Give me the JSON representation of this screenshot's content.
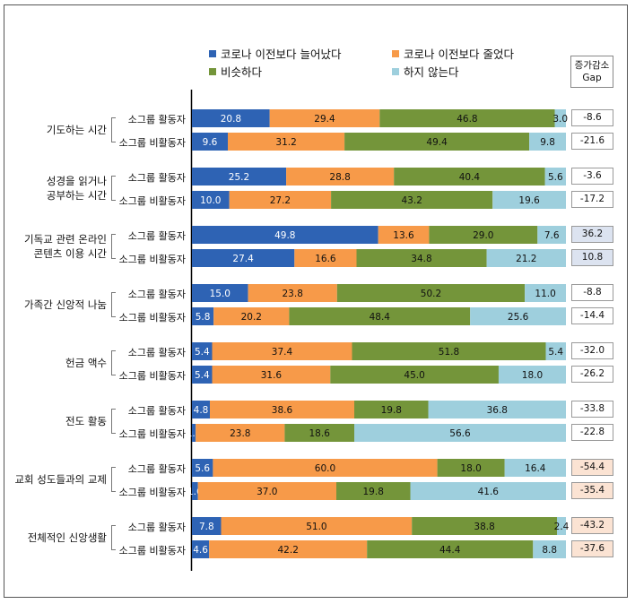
{
  "chart_data": {
    "type": "bar",
    "orientation": "horizontal",
    "stacked": true,
    "xlim": [
      0,
      100
    ],
    "series_names": [
      "코로나 이전보다 늘어났다",
      "코로나 이전보다 줄었다",
      "비슷하다",
      "하지 않는다"
    ],
    "colors": [
      "#2E63B4",
      "#F79A49",
      "#74953A",
      "#9ECFDD"
    ],
    "gap_header": [
      "증가감소",
      "Gap"
    ],
    "groups": [
      {
        "label": [
          "기도하는 시간"
        ],
        "rows": [
          {
            "label": "소그룹 활동자",
            "values": [
              20.8,
              29.4,
              46.8,
              3.0
            ],
            "gap": "-8.6"
          },
          {
            "label": "소그룹 비활동자",
            "values": [
              9.6,
              31.2,
              49.4,
              9.8
            ],
            "gap": "-21.6"
          }
        ]
      },
      {
        "label": [
          "성경을 읽거나",
          "공부하는 시간"
        ],
        "rows": [
          {
            "label": "소그룹 활동자",
            "values": [
              25.2,
              28.8,
              40.4,
              5.6
            ],
            "gap": "-3.6"
          },
          {
            "label": "소그룹 비활동자",
            "values": [
              10.0,
              27.2,
              43.2,
              19.6
            ],
            "gap": "-17.2"
          }
        ]
      },
      {
        "label": [
          "기독교 관련 온라인",
          "콘텐츠 이용 시간"
        ],
        "rows": [
          {
            "label": "소그룹 활동자",
            "values": [
              49.8,
              13.6,
              29.0,
              7.6
            ],
            "gap": "36.2"
          },
          {
            "label": "소그룹 비활동자",
            "values": [
              27.4,
              16.6,
              34.8,
              21.2
            ],
            "gap": "10.8"
          }
        ]
      },
      {
        "label": [
          "가족간 신앙적 나눔"
        ],
        "rows": [
          {
            "label": "소그룹 활동자",
            "values": [
              15.0,
              23.8,
              50.2,
              11.0
            ],
            "gap": "-8.8"
          },
          {
            "label": "소그룹 비활동자",
            "values": [
              5.8,
              20.2,
              48.4,
              25.6
            ],
            "gap": "-14.4"
          }
        ]
      },
      {
        "label": [
          "헌금 액수"
        ],
        "rows": [
          {
            "label": "소그룹 활동자",
            "values": [
              5.4,
              37.4,
              51.8,
              5.4
            ],
            "gap": "-32.0"
          },
          {
            "label": "소그룹 비활동자",
            "values": [
              5.4,
              31.6,
              45.0,
              18.0
            ],
            "gap": "-26.2"
          }
        ]
      },
      {
        "label": [
          "전도 활동"
        ],
        "rows": [
          {
            "label": "소그룹 활동자",
            "values": [
              4.8,
              38.6,
              19.8,
              36.8
            ],
            "gap": "-33.8"
          },
          {
            "label": "소그룹 비활동자",
            "values": [
              1.0,
              23.8,
              18.6,
              56.6
            ],
            "gap": "-22.8"
          }
        ]
      },
      {
        "label": [
          "교회 성도들과의 교제"
        ],
        "rows": [
          {
            "label": "소그룹 활동자",
            "values": [
              5.6,
              60.0,
              18.0,
              16.4
            ],
            "gap": "-54.4"
          },
          {
            "label": "소그룹 비활동자",
            "values": [
              1.6,
              37.0,
              19.8,
              41.6
            ],
            "gap": "-35.4"
          }
        ]
      },
      {
        "label": [
          "전체적인 신앙생활"
        ],
        "rows": [
          {
            "label": "소그룹 활동자",
            "values": [
              7.8,
              51.0,
              38.8,
              2.4
            ],
            "gap": "-43.2"
          },
          {
            "label": "소그룹 비활동자",
            "values": [
              4.6,
              42.2,
              44.4,
              8.8
            ],
            "gap": "-37.6"
          }
        ]
      }
    ],
    "gap_fill": [
      "#ffffff",
      "#ffffff",
      "#DCE3F0",
      "#ffffff",
      "#ffffff",
      "#ffffff",
      "#FBE3D3",
      "#FBE3D3"
    ]
  }
}
